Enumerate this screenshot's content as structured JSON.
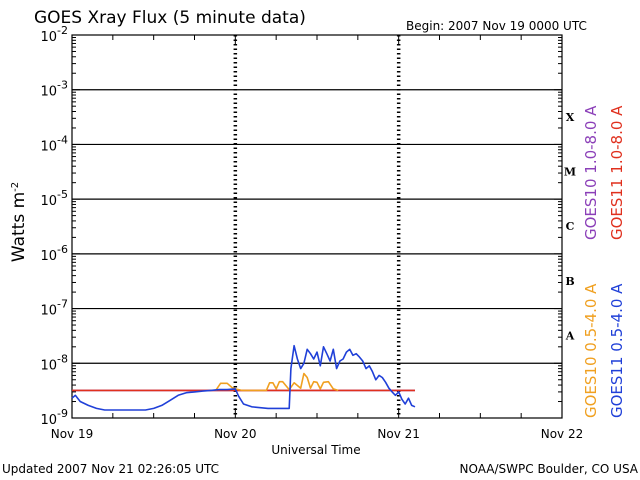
{
  "chart_data": {
    "type": "line",
    "title": "GOES Xray Flux (5 minute data)",
    "begin_label": "Begin:  2007 Nov 19 0000 UTC",
    "xlabel": "Universal Time",
    "ylabel": "Watts m",
    "ylabel_sup": "-2",
    "y_scale": "log",
    "ylim": [
      1e-09,
      0.01
    ],
    "y_ticks": [
      {
        "base": "10",
        "exp": "-9",
        "value": 1e-09
      },
      {
        "base": "10",
        "exp": "-8",
        "value": 1e-08
      },
      {
        "base": "10",
        "exp": "-7",
        "value": 1e-07
      },
      {
        "base": "10",
        "exp": "-6",
        "value": 1e-06
      },
      {
        "base": "10",
        "exp": "-5",
        "value": 1e-05
      },
      {
        "base": "10",
        "exp": "-4",
        "value": 0.0001
      },
      {
        "base": "10",
        "exp": "-3",
        "value": 0.001
      },
      {
        "base": "10",
        "exp": "-2",
        "value": 0.01
      }
    ],
    "xlim": [
      0,
      3
    ],
    "x_ticks": [
      {
        "label": "Nov 19",
        "day": 0
      },
      {
        "label": "Nov 20",
        "day": 1
      },
      {
        "label": "Nov 21",
        "day": 2
      },
      {
        "label": "Nov 22",
        "day": 3
      }
    ],
    "flare_classes": [
      {
        "label": "X",
        "value": 0.0001
      },
      {
        "label": "M",
        "value": 1e-05
      },
      {
        "label": "C",
        "value": 1e-06
      },
      {
        "label": "B",
        "value": 1e-07
      },
      {
        "label": "A",
        "value": 1e-08
      }
    ],
    "grid": true,
    "series": [
      {
        "name": "GOES10 1.0-8.0 A",
        "color": "#8b3fb8",
        "x": [
          0.0,
          2.1
        ],
        "y": [
          3.2e-09,
          3.2e-09
        ]
      },
      {
        "name": "GOES11 1.0-8.0 A",
        "color": "#e0301e",
        "x": [
          0.0,
          2.1
        ],
        "y": [
          3.2e-09,
          3.2e-09
        ]
      },
      {
        "name": "GOES10 0.5-4.0 A",
        "color": "#f0a020",
        "x": [
          0.88,
          0.91,
          0.95,
          0.98,
          1.0,
          1.02,
          1.04,
          1.19,
          1.21,
          1.23,
          1.25,
          1.27,
          1.29,
          1.33,
          1.36,
          1.4,
          1.42,
          1.44,
          1.46,
          1.48,
          1.5,
          1.52,
          1.54,
          1.57,
          1.6,
          1.63
        ],
        "y": [
          3.2e-09,
          4.3e-09,
          4.3e-09,
          3.6e-09,
          3.4e-09,
          3.3e-09,
          3.2e-09,
          3.2e-09,
          4.4e-09,
          4.4e-09,
          3.4e-09,
          4.6e-09,
          4.6e-09,
          3.3e-09,
          4.4e-09,
          3.5e-09,
          6.5e-09,
          5.5e-09,
          3.5e-09,
          4.6e-09,
          4.5e-09,
          3.4e-09,
          4.5e-09,
          4.6e-09,
          3.4e-09,
          3.2e-09
        ]
      },
      {
        "name": "GOES11 0.5-4.0 A",
        "color": "#2040d8",
        "x": [
          0.0,
          0.02,
          0.05,
          0.1,
          0.15,
          0.2,
          0.25,
          0.3,
          0.35,
          0.4,
          0.45,
          0.5,
          0.55,
          0.6,
          0.65,
          0.7,
          0.75,
          0.8,
          0.85,
          0.9,
          0.95,
          1.0,
          1.02,
          1.05,
          1.1,
          1.2,
          1.3,
          1.33,
          1.34,
          1.36,
          1.38,
          1.4,
          1.42,
          1.44,
          1.46,
          1.48,
          1.5,
          1.52,
          1.54,
          1.56,
          1.58,
          1.6,
          1.62,
          1.64,
          1.66,
          1.68,
          1.7,
          1.72,
          1.74,
          1.76,
          1.78,
          1.8,
          1.82,
          1.84,
          1.86,
          1.88,
          1.9,
          1.92,
          1.94,
          1.96,
          1.98,
          2.0,
          2.02,
          2.04,
          2.06,
          2.08,
          2.1
        ],
        "y": [
          2.3e-09,
          2.6e-09,
          2e-09,
          1.7e-09,
          1.5e-09,
          1.4e-09,
          1.4e-09,
          1.4e-09,
          1.4e-09,
          1.4e-09,
          1.4e-09,
          1.5e-09,
          1.7e-09,
          2.1e-09,
          2.6e-09,
          2.9e-09,
          3e-09,
          3.1e-09,
          3.2e-09,
          3.3e-09,
          3.3e-09,
          3.4e-09,
          2.5e-09,
          1.8e-09,
          1.6e-09,
          1.5e-09,
          1.5e-09,
          1.5e-09,
          8e-09,
          2.1e-08,
          1.2e-08,
          8e-09,
          1e-08,
          1.8e-08,
          1.5e-08,
          1.2e-08,
          1.6e-08,
          9e-09,
          2e-08,
          1.5e-08,
          1.1e-08,
          1.8e-08,
          8e-09,
          1.1e-08,
          1.2e-08,
          1.6e-08,
          1.8e-08,
          1.4e-08,
          1.5e-08,
          1.3e-08,
          1.1e-08,
          8e-09,
          9e-09,
          7e-09,
          5e-09,
          6e-09,
          5.5e-09,
          4.5e-09,
          3.5e-09,
          3e-09,
          2.6e-09,
          3e-09,
          2.2e-09,
          1.8e-09,
          2.3e-09,
          1.7e-09,
          1.6e-09
        ]
      }
    ],
    "legend_placement": "right, vertical"
  },
  "footer": {
    "updated": "Updated 2007 Nov 21 02:26:05 UTC",
    "credit": "NOAA/SWPC Boulder, CO USA"
  }
}
